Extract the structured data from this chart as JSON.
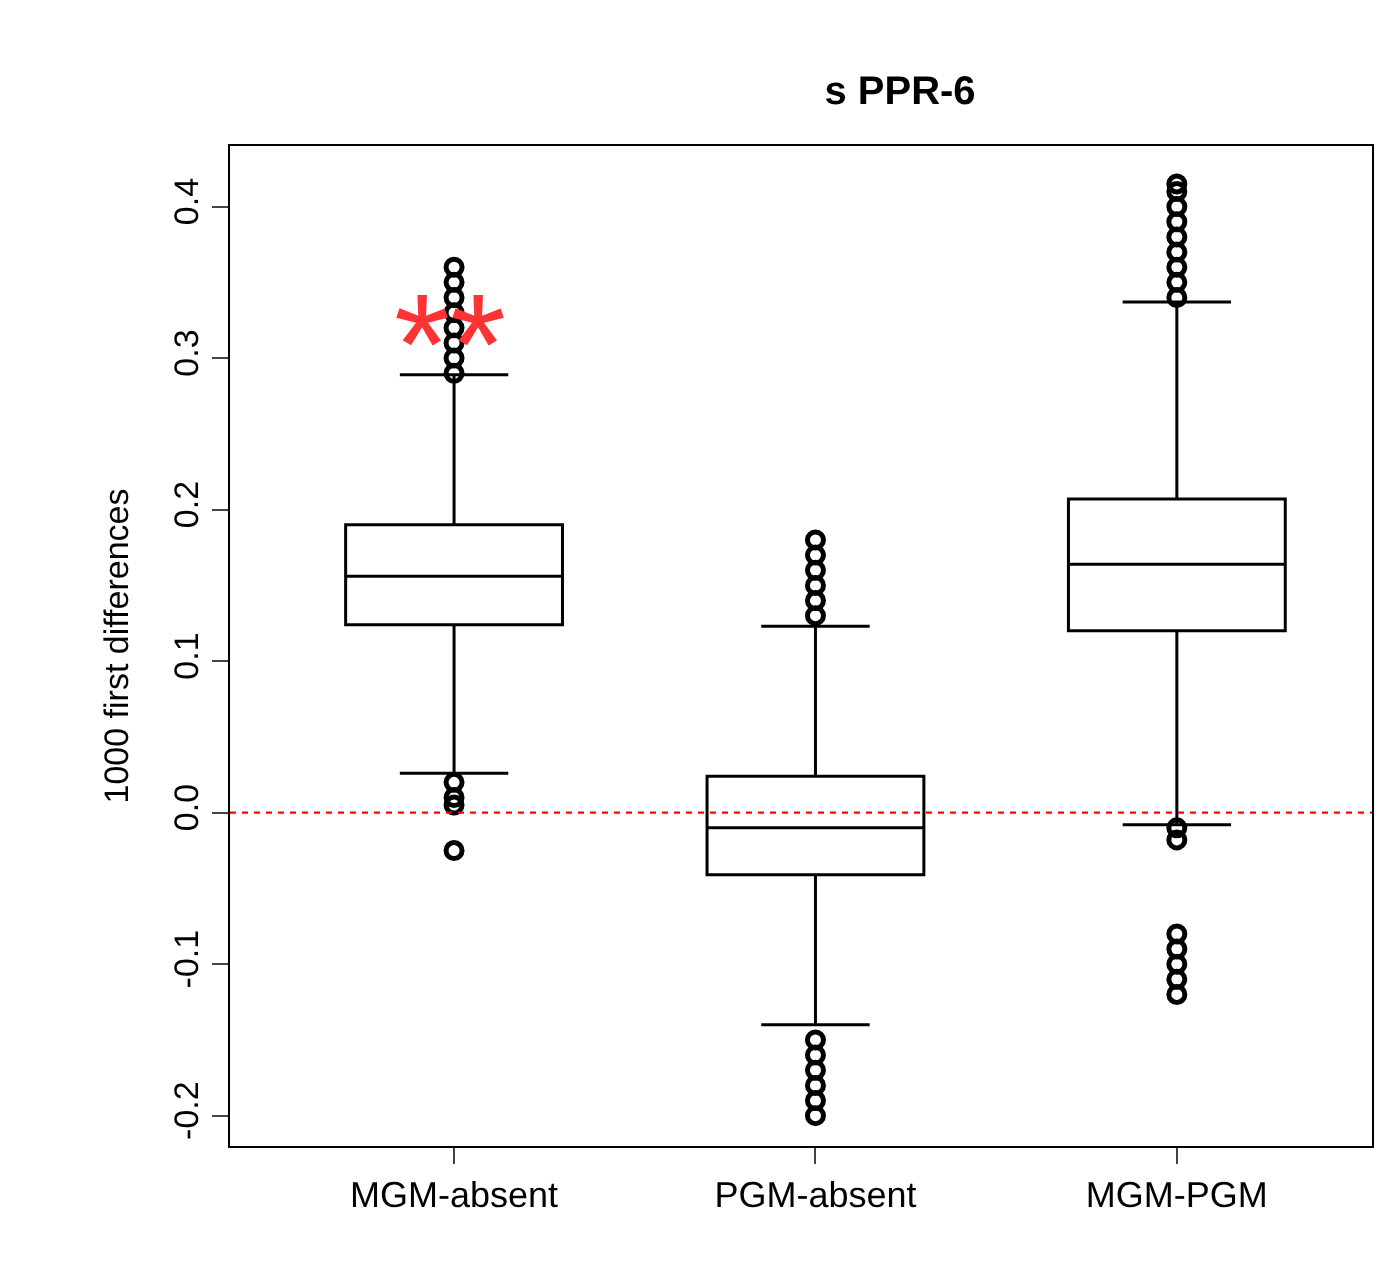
{
  "chart_data": {
    "type": "box",
    "title": "s PPR-6",
    "ylabel": "1000 first differences",
    "categories": [
      "MGM-absent",
      "PGM-absent",
      "MGM-PGM"
    ],
    "boxes": [
      {
        "low": 0.026,
        "q1": 0.124,
        "median": 0.156,
        "q3": 0.19,
        "high": 0.289,
        "outliers": [
          0.29,
          0.3,
          0.31,
          0.32,
          0.33,
          0.34,
          0.35,
          0.36,
          0.02,
          0.01,
          0.005,
          -0.025
        ]
      },
      {
        "low": -0.14,
        "q1": -0.041,
        "median": -0.01,
        "q3": 0.024,
        "high": 0.123,
        "outliers": [
          0.13,
          0.14,
          0.15,
          0.16,
          0.17,
          0.18,
          -0.15,
          -0.16,
          -0.17,
          -0.18,
          -0.19,
          -0.2
        ]
      },
      {
        "low": -0.008,
        "q1": 0.12,
        "median": 0.164,
        "q3": 0.207,
        "high": 0.337,
        "outliers": [
          0.34,
          0.35,
          0.36,
          0.37,
          0.38,
          0.39,
          0.4,
          0.41,
          0.415,
          -0.01,
          -0.018,
          -0.08,
          -0.09,
          -0.1,
          -0.11,
          -0.12
        ]
      }
    ],
    "color": "#000000",
    "ylim": [
      -0.22,
      0.44
    ],
    "yticks": [
      -0.2,
      -0.1,
      {
        "value": 0,
        "label": "0.0"
      },
      0.1,
      0.2,
      0.3,
      0.4
    ],
    "ref_lines": [
      {
        "axis": "y",
        "value": 0,
        "color": "#ff0000",
        "line_style": "dotted"
      }
    ],
    "annotations": [
      "**"
    ],
    "marker": "circle"
  }
}
